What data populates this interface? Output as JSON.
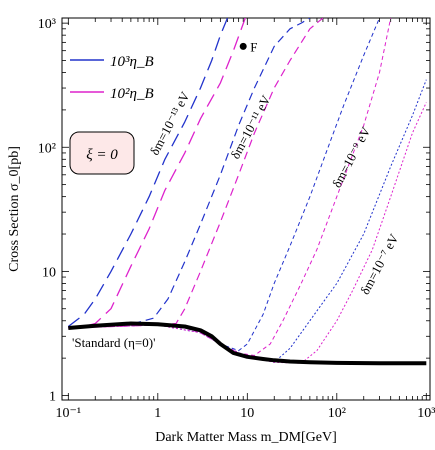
{
  "chart_data": {
    "type": "line",
    "xlabel": "Dark Matter Mass  m_DM[GeV]",
    "ylabel": "Cross Section  σ_0[pb]",
    "xscale": "log",
    "yscale": "log",
    "xlim": [
      0.085,
      1100
    ],
    "ylim": [
      0.92,
      1100
    ],
    "xticks": [
      0.1,
      1,
      10,
      100,
      1000
    ],
    "xtick_labels": [
      "10⁻¹",
      "1",
      "10",
      "10²",
      "10³"
    ],
    "yticks": [
      1,
      10,
      100,
      1000
    ],
    "ytick_labels": [
      "1",
      "10",
      "10²",
      "10³"
    ],
    "legend_position": "top-left",
    "legend": [
      {
        "label": "10³η_B",
        "color": "#2233cc"
      },
      {
        "label": "10²η_B",
        "color": "#dd22cc"
      }
    ],
    "box_label": "ξ = 0",
    "standard_label": "'Standard (η=0)'",
    "point": {
      "label": "F",
      "x": 9.0,
      "y": 650
    },
    "annotations": [
      {
        "text": "δm=10⁻¹³ eV",
        "x": 1.5,
        "y": 150
      },
      {
        "text": "δm=10⁻¹¹ eV",
        "x": 12,
        "y": 140
      },
      {
        "text": "δm=10⁻⁹ eV",
        "x": 160,
        "y": 80
      },
      {
        "text": "δm=10⁻⁷ eV",
        "x": 330,
        "y": 11
      }
    ],
    "series": [
      {
        "name": "'Standard (η=0)'",
        "color": "#000000",
        "style": "solid-thick",
        "x": [
          0.1,
          0.2,
          0.5,
          1,
          2,
          3,
          4,
          5,
          7,
          10,
          15,
          20,
          30,
          50,
          100,
          300,
          1000
        ],
        "y": [
          3.5,
          3.65,
          3.8,
          3.75,
          3.6,
          3.35,
          3.0,
          2.6,
          2.2,
          2.05,
          1.97,
          1.92,
          1.88,
          1.85,
          1.83,
          1.82,
          1.82
        ]
      },
      {
        "color": "#2233cc",
        "style": "long-dash",
        "x": [
          0.1,
          0.15,
          0.2,
          0.3,
          0.5,
          0.8,
          1.2,
          2,
          3,
          4,
          5,
          6
        ],
        "y": [
          3.6,
          4.5,
          6,
          10,
          20,
          40,
          80,
          160,
          300,
          500,
          800,
          1100
        ]
      },
      {
        "color": "#dd22cc",
        "style": "long-dash",
        "x": [
          0.1,
          0.15,
          0.2,
          0.3,
          0.5,
          0.8,
          1.2,
          2,
          3,
          5,
          7,
          9.5
        ],
        "y": [
          3.5,
          3.6,
          3.8,
          5,
          11,
          22,
          45,
          90,
          170,
          330,
          600,
          1100
        ]
      },
      {
        "color": "#2233cc",
        "style": "medium-dash",
        "x": [
          0.1,
          0.5,
          0.9,
          1.3,
          2,
          3,
          5,
          8,
          12,
          20,
          30,
          40,
          50
        ],
        "y": [
          3.55,
          3.75,
          4.2,
          6,
          12,
          24,
          60,
          150,
          300,
          650,
          900,
          1000,
          1100
        ]
      },
      {
        "color": "#dd22cc",
        "style": "medium-dash",
        "x": [
          0.1,
          1,
          1.6,
          2,
          3,
          5,
          8,
          12,
          20,
          30,
          50,
          70
        ],
        "y": [
          3.5,
          3.7,
          3.8,
          5,
          10,
          25,
          60,
          130,
          300,
          500,
          900,
          1100
        ]
      },
      {
        "color": "#2233cc",
        "style": "short-dash",
        "x": [
          0.1,
          1,
          2,
          3,
          5,
          8,
          10,
          15,
          20,
          30,
          50,
          80,
          120,
          200,
          300
        ],
        "y": [
          3.55,
          3.7,
          3.5,
          3.2,
          2.6,
          2.3,
          2.6,
          4.5,
          8,
          16,
          40,
          100,
          220,
          550,
          1100
        ]
      },
      {
        "color": "#dd22cc",
        "style": "short-dash",
        "x": [
          0.1,
          1,
          2,
          3,
          5,
          8,
          12,
          18,
          25,
          40,
          60,
          100,
          200,
          300,
          400
        ],
        "y": [
          3.5,
          3.7,
          3.5,
          3.2,
          2.6,
          2.2,
          2.1,
          2.6,
          4,
          8,
          15,
          40,
          150,
          400,
          1100
        ]
      },
      {
        "color": "#2233cc",
        "style": "dotted",
        "x": [
          0.1,
          1,
          3,
          5,
          10,
          20,
          30,
          40,
          60,
          100,
          200,
          400,
          700,
          1000
        ],
        "y": [
          3.55,
          3.7,
          3.2,
          2.6,
          2.05,
          1.85,
          2.4,
          3.2,
          4.8,
          8,
          20,
          70,
          180,
          350
        ]
      },
      {
        "color": "#dd22cc",
        "style": "dotted",
        "x": [
          0.1,
          1,
          3,
          5,
          10,
          20,
          40,
          60,
          100,
          150,
          250,
          400,
          700,
          1000
        ],
        "y": [
          3.5,
          3.7,
          3.2,
          2.6,
          2.05,
          1.85,
          1.82,
          2.3,
          4,
          7,
          15,
          40,
          130,
          230
        ]
      }
    ]
  }
}
